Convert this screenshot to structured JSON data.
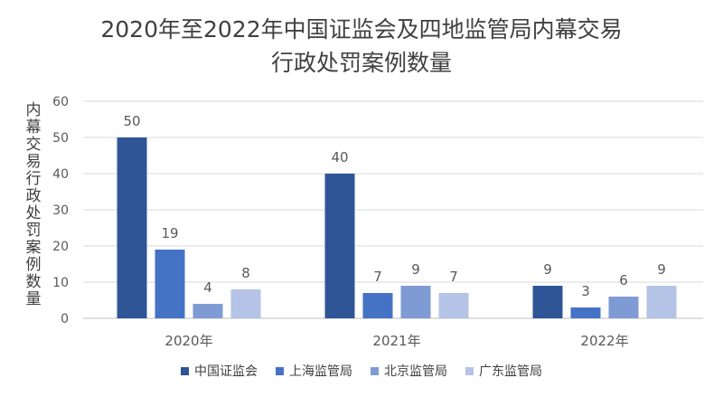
{
  "chart_data": {
    "type": "bar",
    "title_lines": [
      "2020年至2022年中国证监会及四地监管局内幕交易",
      "行政处罚案例数量"
    ],
    "ylabel": "内幕交易行政处罚案例数量",
    "xlabel": "",
    "categories": [
      "2020年",
      "2021年",
      "2022年"
    ],
    "ylim": [
      0,
      60
    ],
    "yticks": [
      0,
      10,
      20,
      30,
      40,
      50,
      60
    ],
    "grid": true,
    "legend_position": "bottom",
    "series": [
      {
        "name": "中国证监会",
        "values": [
          50,
          40,
          9
        ],
        "color": "#2f5597"
      },
      {
        "name": "上海监管局",
        "values": [
          19,
          7,
          3
        ],
        "color": "#4472c4"
      },
      {
        "name": "北京监管局",
        "values": [
          4,
          9,
          6
        ],
        "color": "#7f9bd4"
      },
      {
        "name": "广东监管局",
        "values": [
          8,
          7,
          9
        ],
        "color": "#b4c3e6"
      }
    ]
  }
}
